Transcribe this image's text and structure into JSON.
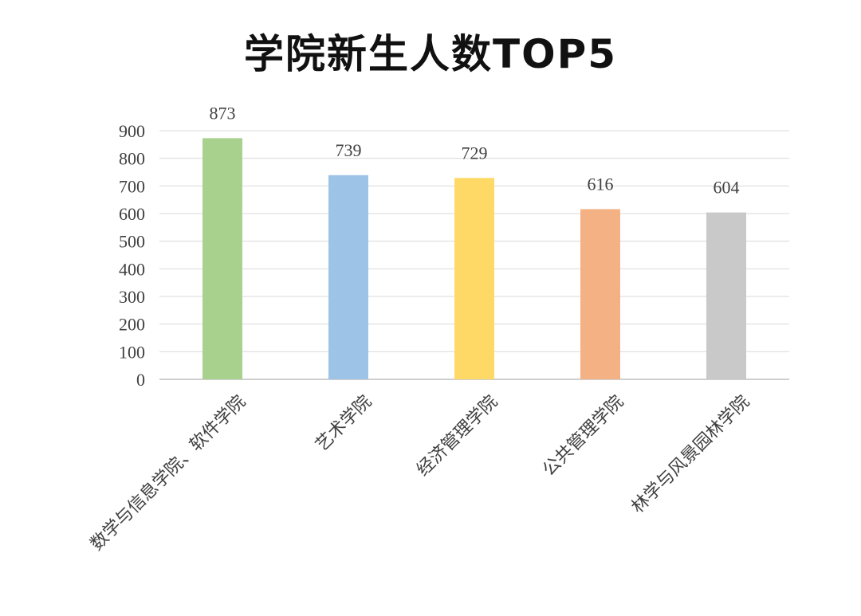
{
  "chart_data": {
    "type": "bar",
    "title": "学院新生人数TOP5",
    "categories": [
      "数学与信息学院、软件学院",
      "艺术学院",
      "经济管理学院",
      "公共管理学院",
      "林学与风景园林学院"
    ],
    "values": [
      873,
      739,
      729,
      616,
      604
    ],
    "colors": [
      "#a9d18e",
      "#9dc3e6",
      "#ffd966",
      "#f4b183",
      "#c9c9c9"
    ],
    "ylim": [
      0,
      900
    ],
    "yticks": [
      0,
      100,
      200,
      300,
      400,
      500,
      600,
      700,
      800,
      900
    ],
    "grid": true,
    "legend": "none"
  }
}
